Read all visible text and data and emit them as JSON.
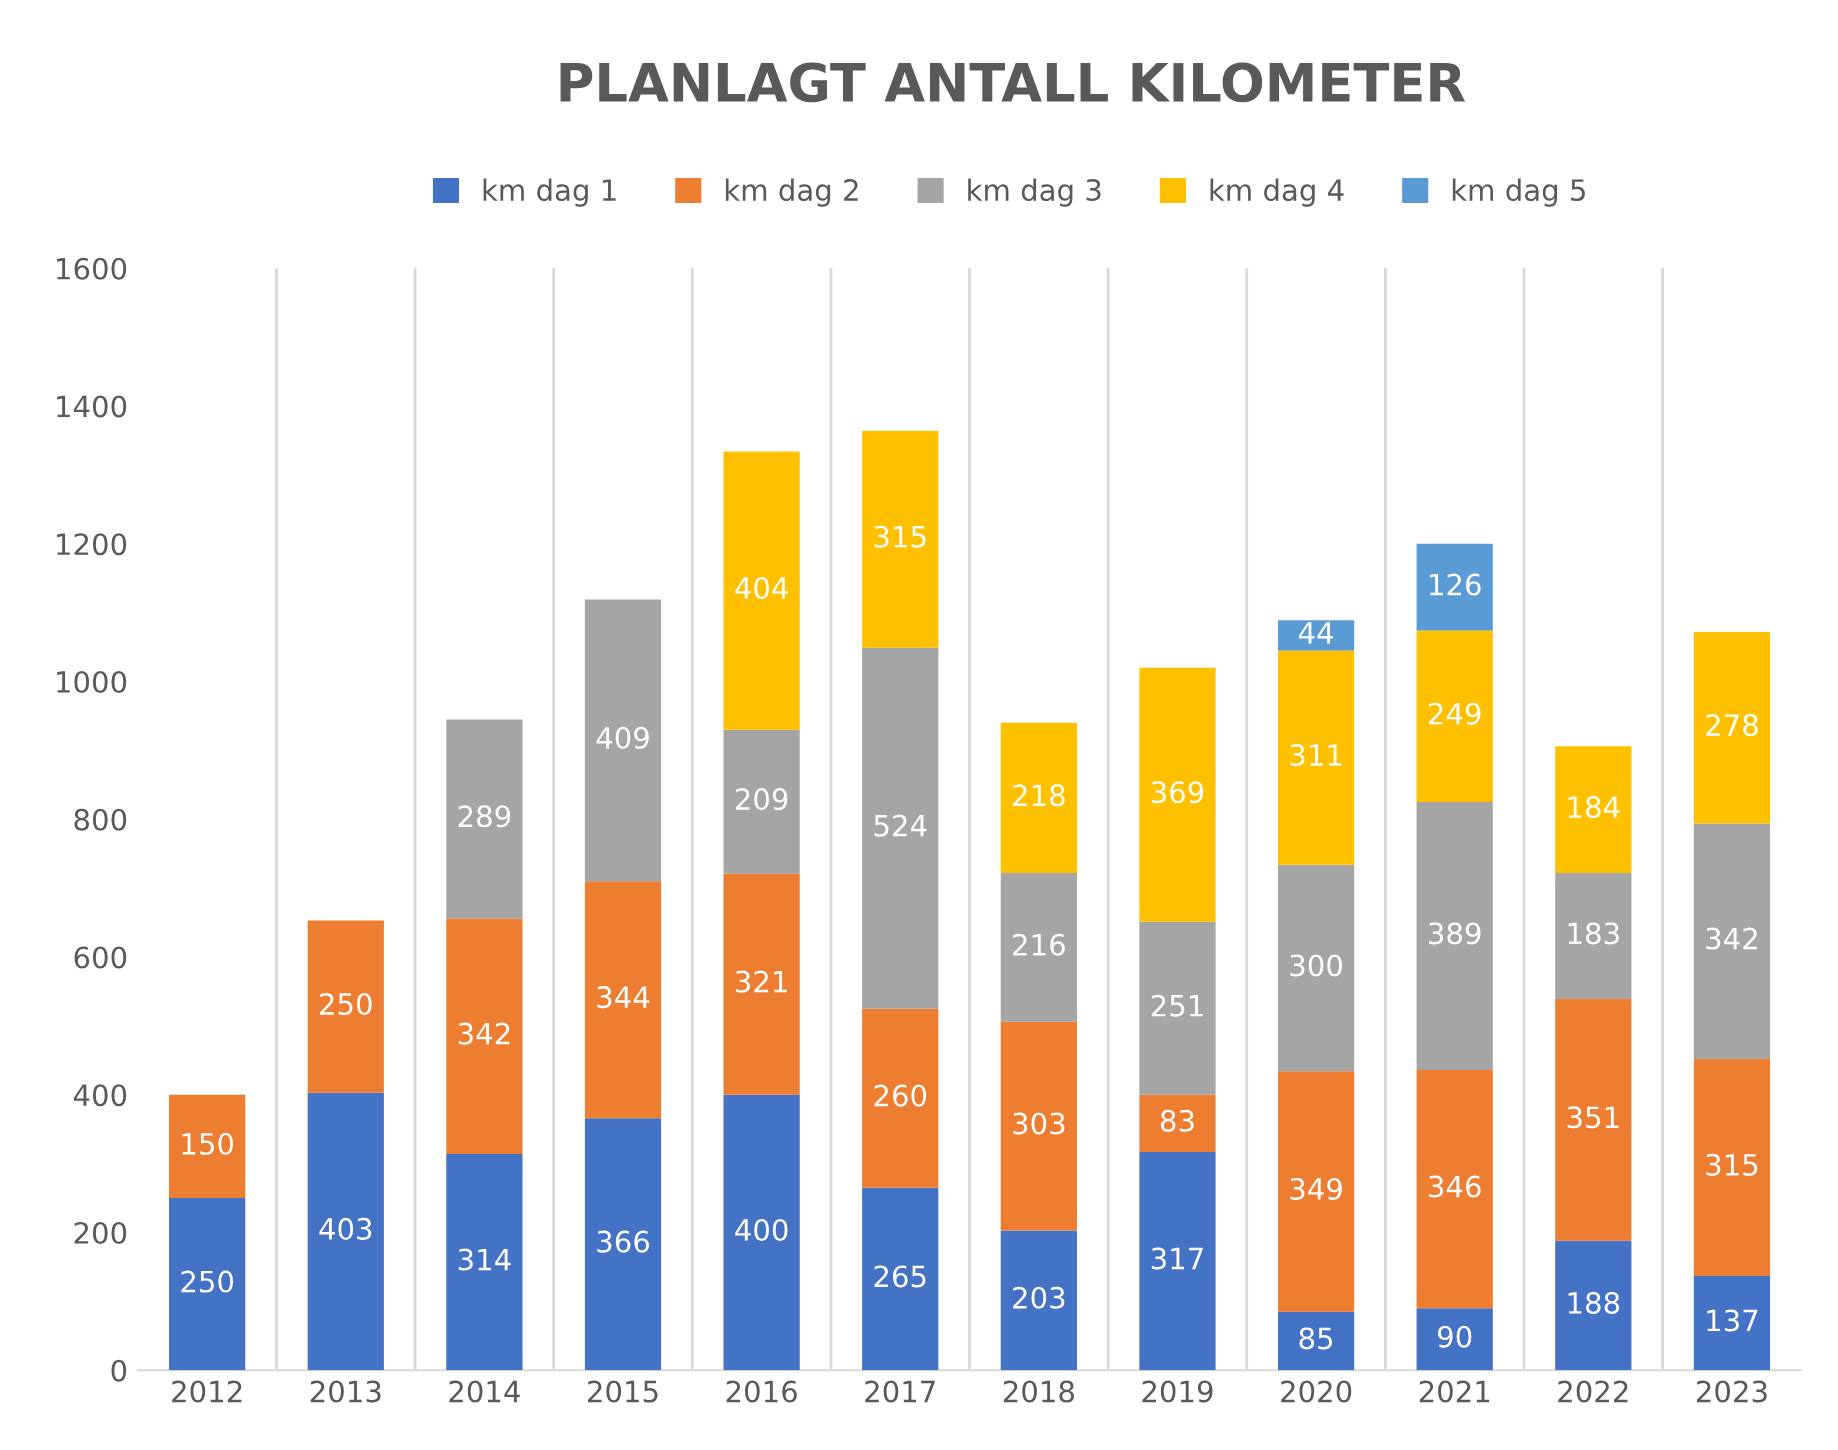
{
  "chart_data": {
    "type": "bar",
    "title": "PLANLAGT ANTALL KILOMETER",
    "stacked": true,
    "categories": [
      "2012",
      "2013",
      "2014",
      "2015",
      "2016",
      "2017",
      "2018",
      "2019",
      "2020",
      "2021",
      "2022",
      "2023"
    ],
    "series": [
      {
        "name": "km dag 1",
        "color": "#4472c4",
        "values": [
          250,
          403,
          314,
          366,
          400,
          265,
          203,
          317,
          85,
          90,
          188,
          137
        ]
      },
      {
        "name": "km dag 2",
        "color": "#ed7d31",
        "values": [
          150,
          250,
          342,
          344,
          321,
          260,
          303,
          83,
          349,
          346,
          351,
          315
        ]
      },
      {
        "name": "km dag 3",
        "color": "#a5a5a5",
        "values": [
          null,
          null,
          289,
          409,
          209,
          524,
          216,
          251,
          300,
          389,
          183,
          342
        ]
      },
      {
        "name": "km dag 4",
        "color": "#ffc000",
        "values": [
          null,
          null,
          null,
          null,
          404,
          315,
          218,
          369,
          311,
          249,
          184,
          278
        ]
      },
      {
        "name": "km dag 5",
        "color": "#5b9bd5",
        "values": [
          null,
          null,
          null,
          null,
          null,
          null,
          null,
          null,
          44,
          126,
          null,
          null
        ]
      }
    ],
    "ylim": [
      0,
      1600
    ],
    "yticks": [
      0,
      200,
      400,
      600,
      800,
      1000,
      1200,
      1400,
      1600
    ],
    "data_labels": true,
    "grid": "x",
    "legend": "top"
  }
}
